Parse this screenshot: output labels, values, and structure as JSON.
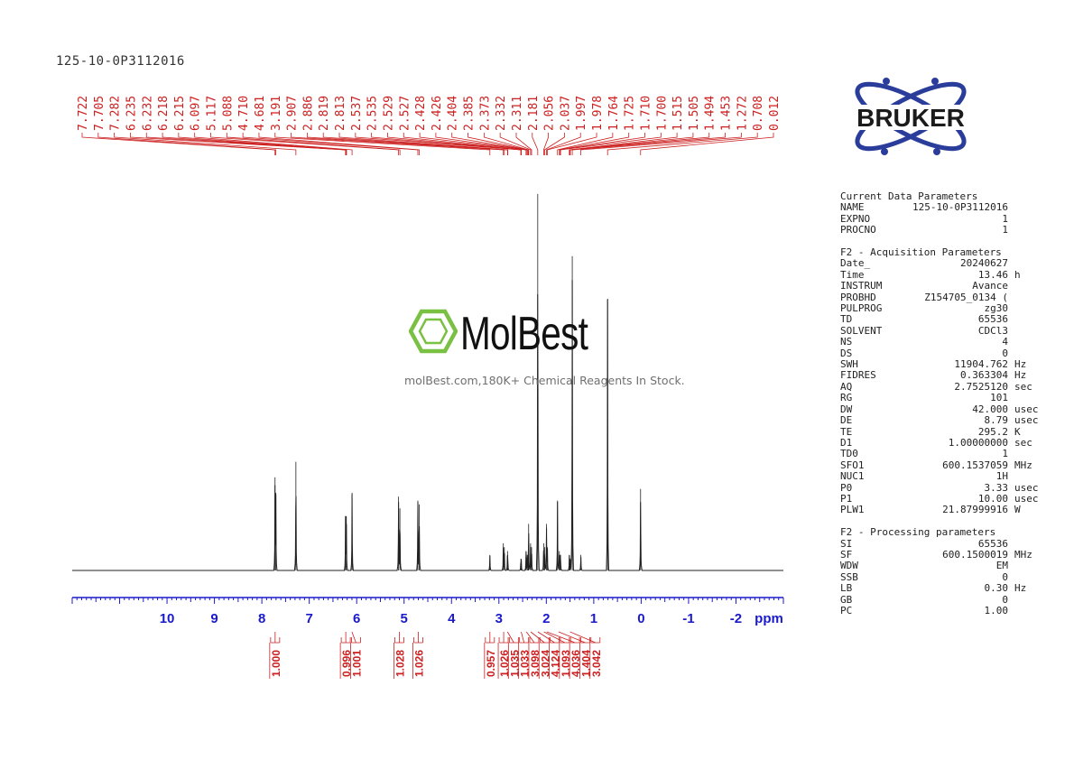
{
  "sample_id": "125-10-0P3112016",
  "brand": "BRUKER",
  "watermark": {
    "brand": "MolBest",
    "tagline": "molBest.com,180K+ Chemical Reagents In Stock."
  },
  "colors": {
    "peak_labels": "#cc2020",
    "axis": "#1a1acc",
    "spectrum": "#222222",
    "logo": "#2a3d9a",
    "watermark_green": "#7ac043"
  },
  "chart_data": {
    "type": "line",
    "title": "",
    "xlabel": "ppm",
    "ylabel": "",
    "xlim": [
      12.0,
      -3.0
    ],
    "x_reversed": true,
    "ticks": [
      "10",
      "9",
      "8",
      "7",
      "6",
      "5",
      "4",
      "3",
      "2",
      "1",
      "0",
      "-1",
      "-2"
    ],
    "peak_labels": [
      "7.722",
      "7.705",
      "7.282",
      "6.235",
      "6.232",
      "6.218",
      "6.215",
      "6.097",
      "5.117",
      "5.088",
      "4.710",
      "4.681",
      "3.191",
      "2.907",
      "2.886",
      "2.819",
      "2.813",
      "2.537",
      "2.535",
      "2.529",
      "2.527",
      "2.428",
      "2.426",
      "2.404",
      "2.385",
      "2.373",
      "2.332",
      "2.311",
      "2.181",
      "2.056",
      "2.037",
      "1.997",
      "1.978",
      "1.764",
      "1.725",
      "1.710",
      "1.700",
      "1.515",
      "1.505",
      "1.494",
      "1.453",
      "1.272",
      "0.708",
      "0.012"
    ],
    "peaks": [
      {
        "ppm": 7.722,
        "height": 0.24
      },
      {
        "ppm": 7.705,
        "height": 0.2
      },
      {
        "ppm": 7.282,
        "height": 0.28
      },
      {
        "ppm": 6.235,
        "height": 0.14
      },
      {
        "ppm": 6.218,
        "height": 0.14
      },
      {
        "ppm": 6.097,
        "height": 0.2
      },
      {
        "ppm": 5.117,
        "height": 0.19
      },
      {
        "ppm": 5.088,
        "height": 0.16
      },
      {
        "ppm": 4.71,
        "height": 0.18
      },
      {
        "ppm": 4.681,
        "height": 0.17
      },
      {
        "ppm": 3.191,
        "height": 0.04
      },
      {
        "ppm": 2.907,
        "height": 0.07
      },
      {
        "ppm": 2.886,
        "height": 0.06
      },
      {
        "ppm": 2.819,
        "height": 0.05
      },
      {
        "ppm": 2.813,
        "height": 0.04
      },
      {
        "ppm": 2.537,
        "height": 0.03
      },
      {
        "ppm": 2.529,
        "height": 0.03
      },
      {
        "ppm": 2.428,
        "height": 0.05
      },
      {
        "ppm": 2.404,
        "height": 0.04
      },
      {
        "ppm": 2.385,
        "height": 0.04
      },
      {
        "ppm": 2.373,
        "height": 0.12
      },
      {
        "ppm": 2.332,
        "height": 0.07
      },
      {
        "ppm": 2.311,
        "height": 0.06
      },
      {
        "ppm": 2.181,
        "height": 0.97
      },
      {
        "ppm": 2.056,
        "height": 0.07
      },
      {
        "ppm": 2.037,
        "height": 0.06
      },
      {
        "ppm": 1.997,
        "height": 0.12
      },
      {
        "ppm": 1.978,
        "height": 0.06
      },
      {
        "ppm": 1.764,
        "height": 0.18
      },
      {
        "ppm": 1.725,
        "height": 0.05
      },
      {
        "ppm": 1.71,
        "height": 0.04
      },
      {
        "ppm": 1.7,
        "height": 0.04
      },
      {
        "ppm": 1.515,
        "height": 0.04
      },
      {
        "ppm": 1.505,
        "height": 0.03
      },
      {
        "ppm": 1.494,
        "height": 0.03
      },
      {
        "ppm": 1.453,
        "height": 0.81
      },
      {
        "ppm": 1.272,
        "height": 0.04
      },
      {
        "ppm": 0.708,
        "height": 0.7
      },
      {
        "ppm": 0.012,
        "height": 0.21
      }
    ],
    "integrals": [
      {
        "ppm": 7.72,
        "value": "1.000"
      },
      {
        "ppm": 6.23,
        "value": "0.996"
      },
      {
        "ppm": 6.1,
        "value": "1.001"
      },
      {
        "ppm": 5.1,
        "value": "1.028"
      },
      {
        "ppm": 4.7,
        "value": "1.026"
      },
      {
        "ppm": 3.19,
        "value": "0.957"
      },
      {
        "ppm": 2.9,
        "value": "1.026"
      },
      {
        "ppm": 2.82,
        "value": "1.035"
      },
      {
        "ppm": 2.53,
        "value": "1.033"
      },
      {
        "ppm": 2.42,
        "value": "3.098"
      },
      {
        "ppm": 2.33,
        "value": "3.024"
      },
      {
        "ppm": 2.18,
        "value": "4.124"
      },
      {
        "ppm": 2.05,
        "value": "1.093"
      },
      {
        "ppm": 1.99,
        "value": "4.036"
      },
      {
        "ppm": 1.74,
        "value": "1.404"
      },
      {
        "ppm": 1.5,
        "value": "3.042"
      }
    ]
  },
  "parameters": {
    "sections": [
      {
        "title": "Current Data Parameters",
        "rows": [
          {
            "name": "NAME",
            "value": "125-10-0P3112016",
            "unit": ""
          },
          {
            "name": "EXPNO",
            "value": "1",
            "unit": ""
          },
          {
            "name": "PROCNO",
            "value": "1",
            "unit": ""
          }
        ]
      },
      {
        "title": "F2 - Acquisition Parameters",
        "rows": [
          {
            "name": "Date_",
            "value": "20240627",
            "unit": ""
          },
          {
            "name": "Time",
            "value": "13.46",
            "unit": "h"
          },
          {
            "name": "INSTRUM",
            "value": "Avance",
            "unit": ""
          },
          {
            "name": "PROBHD",
            "value": "Z154705_0134 (",
            "unit": ""
          },
          {
            "name": "PULPROG",
            "value": "zg30",
            "unit": ""
          },
          {
            "name": "TD",
            "value": "65536",
            "unit": ""
          },
          {
            "name": "SOLVENT",
            "value": "CDCl3",
            "unit": ""
          },
          {
            "name": "NS",
            "value": "4",
            "unit": ""
          },
          {
            "name": "DS",
            "value": "0",
            "unit": ""
          },
          {
            "name": "SWH",
            "value": "11904.762",
            "unit": "Hz"
          },
          {
            "name": "FIDRES",
            "value": "0.363304",
            "unit": "Hz"
          },
          {
            "name": "AQ",
            "value": "2.7525120",
            "unit": "sec"
          },
          {
            "name": "RG",
            "value": "101",
            "unit": ""
          },
          {
            "name": "DW",
            "value": "42.000",
            "unit": "usec"
          },
          {
            "name": "DE",
            "value": "8.79",
            "unit": "usec"
          },
          {
            "name": "TE",
            "value": "295.2",
            "unit": "K"
          },
          {
            "name": "D1",
            "value": "1.00000000",
            "unit": "sec"
          },
          {
            "name": "TD0",
            "value": "1",
            "unit": ""
          },
          {
            "name": "SFO1",
            "value": "600.1537059",
            "unit": "MHz"
          },
          {
            "name": "NUC1",
            "value": "1H",
            "unit": ""
          },
          {
            "name": "P0",
            "value": "3.33",
            "unit": "usec"
          },
          {
            "name": "P1",
            "value": "10.00",
            "unit": "usec"
          },
          {
            "name": "PLW1",
            "value": "21.87999916",
            "unit": "W"
          }
        ]
      },
      {
        "title": "F2 - Processing parameters",
        "rows": [
          {
            "name": "SI",
            "value": "65536",
            "unit": ""
          },
          {
            "name": "SF",
            "value": "600.1500019",
            "unit": "MHz"
          },
          {
            "name": "WDW",
            "value": "EM",
            "unit": ""
          },
          {
            "name": "SSB",
            "value": "0",
            "unit": ""
          },
          {
            "name": "LB",
            "value": "0.30",
            "unit": "Hz"
          },
          {
            "name": "GB",
            "value": "0",
            "unit": ""
          },
          {
            "name": "PC",
            "value": "1.00",
            "unit": ""
          }
        ]
      }
    ]
  }
}
